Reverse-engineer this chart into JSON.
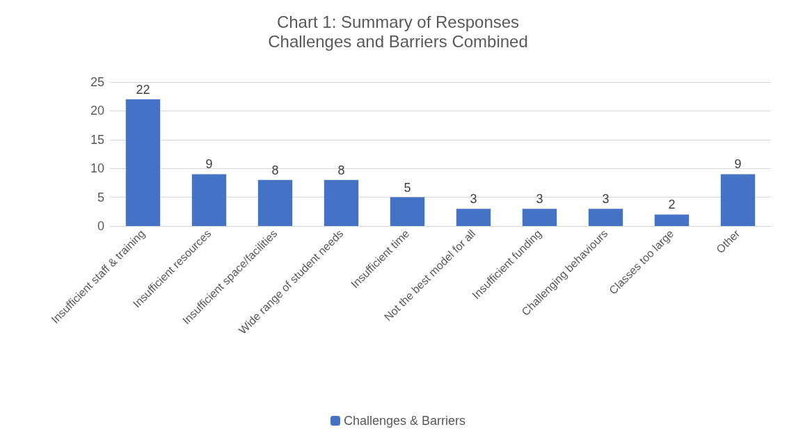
{
  "chart_data": {
    "type": "bar",
    "title": "Chart 1: Summary of Responses",
    "subtitle": "Challenges and Barriers Combined",
    "categories": [
      "Insufficient staff & training",
      "Insufficient resources",
      "Insufficient space/facilities",
      "Wide range of student needs",
      "Insufficient time",
      "Not the best model for all",
      "Insufficient funding",
      "Challenging behaviours",
      "Classes too large",
      "Other"
    ],
    "series": [
      {
        "name": "Challenges & Barriers",
        "color": "#4472c4",
        "values": [
          22,
          9,
          8,
          8,
          5,
          3,
          3,
          3,
          2,
          9
        ]
      }
    ],
    "ylim": [
      0,
      25
    ],
    "yticks": [
      0,
      5,
      10,
      15,
      20,
      25
    ],
    "grid": "y",
    "legend": "bottom",
    "data_labels": true
  }
}
